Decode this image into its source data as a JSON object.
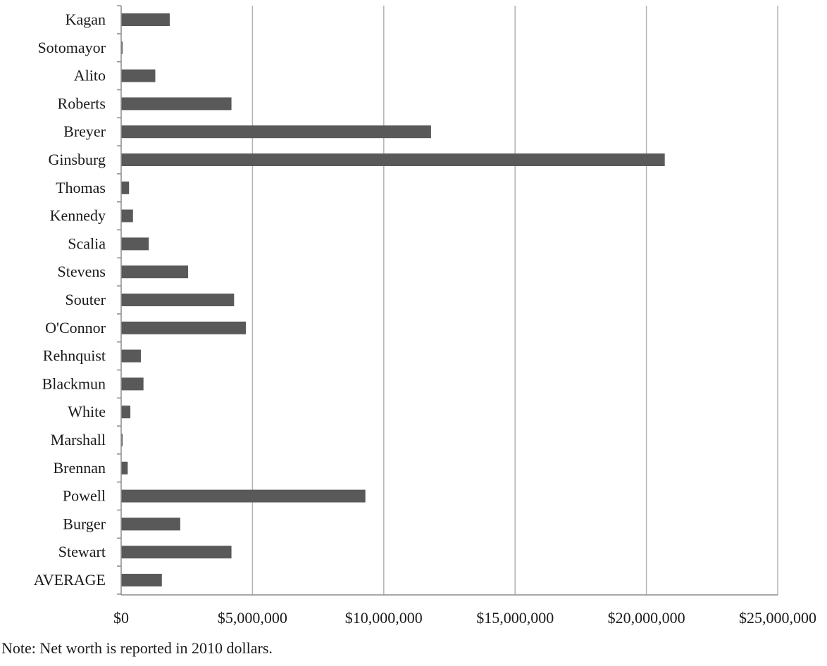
{
  "chart_data": {
    "type": "bar",
    "orientation": "horizontal",
    "title": "",
    "xlabel": "",
    "ylabel": "",
    "categories": [
      "Kagan",
      "Sotomayor",
      "Alito",
      "Roberts",
      "Breyer",
      "Ginsburg",
      "Thomas",
      "Kennedy",
      "Scalia",
      "Stevens",
      "Souter",
      "O'Connor",
      "Rehnquist",
      "Blackmun",
      "White",
      "Marshall",
      "Brennan",
      "Powell",
      "Burger",
      "Stewart",
      "AVERAGE"
    ],
    "values": [
      1850000,
      50000,
      1300000,
      4200000,
      11800000,
      20700000,
      300000,
      450000,
      1050000,
      2550000,
      4300000,
      4750000,
      750000,
      850000,
      350000,
      50000,
      250000,
      9300000,
      2250000,
      4200000,
      1550000
    ],
    "xlim": [
      0,
      25000000
    ],
    "ticks": [
      0,
      5000000,
      10000000,
      15000000,
      20000000,
      25000000
    ],
    "tick_labels": [
      "$0",
      "$5,000,000",
      "$10,000,000",
      "$15,000,000",
      "$20,000,000",
      "$25,000,000"
    ],
    "grid": true,
    "bar_color": "#595959",
    "grid_color": "#b3b3b3"
  },
  "note": "Note: Net worth is reported in 2010 dollars."
}
